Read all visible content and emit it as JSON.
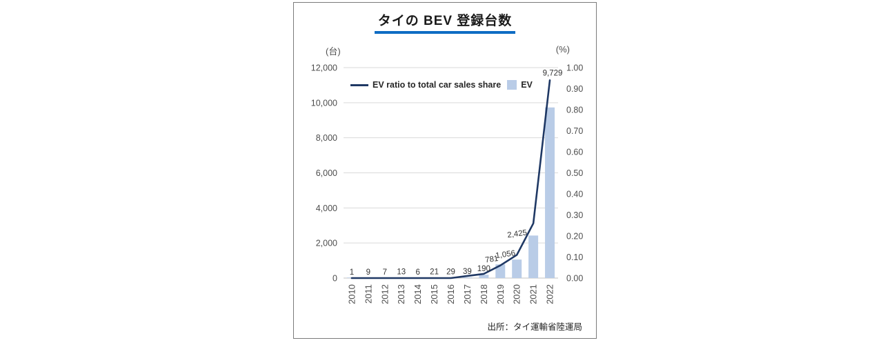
{
  "title": "タイの BEV 登録台数",
  "axis_units": {
    "left": "(台)",
    "right": "(%)"
  },
  "legend": {
    "items": [
      {
        "label": "EV ratio to total car sales share",
        "swatch": "line"
      },
      {
        "label": "EV",
        "swatch": "bar"
      }
    ]
  },
  "source": "出所：タイ運輸省陸運局",
  "colors": {
    "bar": "#b9cce7",
    "line": "#1f3864",
    "grid": "#d9d9d9",
    "axis": "#c0c0c0",
    "tick_text": "#4d4d4d",
    "label_text": "#333333",
    "title_underline": "#0e6cc3"
  },
  "chart_data": {
    "type": "bar",
    "subtype": "bar-line-combo",
    "title": "タイの BEV 登録台数",
    "categories": [
      "2010",
      "2011",
      "2012",
      "2013",
      "2014",
      "2015",
      "2016",
      "2017",
      "2018",
      "2019",
      "2020",
      "2021",
      "2022"
    ],
    "series": [
      {
        "name": "EV",
        "type": "bar",
        "axis": "left",
        "values": [
          1,
          9,
          7,
          13,
          6,
          21,
          29,
          39,
          190,
          781,
          1056,
          2425,
          9729
        ],
        "labels": [
          "1",
          "9",
          "7",
          "13",
          "6",
          "21",
          "29",
          "39",
          "190",
          "781",
          "1,056",
          "2,425",
          "9,729"
        ]
      },
      {
        "name": "EV ratio to total car sales share",
        "type": "line",
        "axis": "right",
        "values": [
          0.0,
          0.0,
          0.0,
          0.0,
          0.0,
          0.0,
          0.0,
          0.01,
          0.02,
          0.06,
          0.11,
          0.26,
          0.94
        ]
      }
    ],
    "left_axis": {
      "label": "(台)",
      "min": 0,
      "max": 12000,
      "ticks": [
        "0",
        "2,000",
        "4,000",
        "6,000",
        "8,000",
        "10,000",
        "12,000"
      ]
    },
    "right_axis": {
      "label": "(%)",
      "min": 0,
      "max": 1.0,
      "ticks": [
        "0.00",
        "0.10",
        "0.20",
        "0.30",
        "0.40",
        "0.50",
        "0.60",
        "0.70",
        "0.80",
        "0.90",
        "1.00"
      ]
    },
    "grid": "horizontal",
    "legend_position": "top-inside",
    "source": "出所：タイ運輸省陸運局"
  }
}
